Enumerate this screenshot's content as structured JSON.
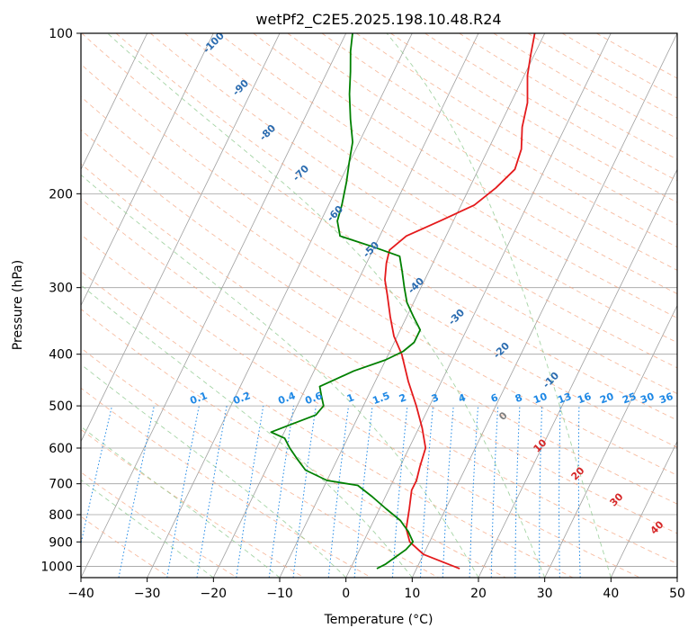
{
  "chart_data": {
    "type": "line",
    "subtype": "skew-t log-p",
    "title": "wetPf2_C2E5.2025.198.10.48.R24",
    "xlabel": "Temperature (°C)",
    "ylabel": "Pressure (hPa)",
    "xlim": [
      -40,
      50
    ],
    "ylim": [
      1050,
      100
    ],
    "yscale": "log",
    "grid": true,
    "x_ticks": [
      "−40",
      "−30",
      "−20",
      "−10",
      "0",
      "10",
      "20",
      "30",
      "40",
      "50"
    ],
    "x_tick_values": [
      -40,
      -30,
      -20,
      -10,
      0,
      10,
      20,
      30,
      40,
      50
    ],
    "y_ticks": [
      "100",
      "200",
      "300",
      "400",
      "500",
      "600",
      "700",
      "800",
      "900",
      "1000"
    ],
    "y_tick_values": [
      100,
      200,
      300,
      400,
      500,
      600,
      700,
      800,
      900,
      1000
    ],
    "series": [
      {
        "color": "#e41a1c",
        "points": [
          [
            16.5,
            1010
          ],
          [
            10,
            950
          ],
          [
            7,
            900
          ],
          [
            5.5,
            850
          ],
          [
            4.5,
            780
          ],
          [
            3.5,
            720
          ],
          [
            3.5,
            690
          ],
          [
            3,
            650
          ],
          [
            2.5,
            600
          ],
          [
            0.5,
            550
          ],
          [
            -2,
            500
          ],
          [
            -5,
            450
          ],
          [
            -8,
            400
          ],
          [
            -10.5,
            370
          ],
          [
            -12.5,
            340
          ],
          [
            -14.5,
            310
          ],
          [
            -16,
            290
          ],
          [
            -17,
            270
          ],
          [
            -17.5,
            255
          ],
          [
            -16,
            240
          ],
          [
            -12,
            225
          ],
          [
            -8,
            210
          ],
          [
            -6,
            195
          ],
          [
            -4.5,
            180
          ],
          [
            -5,
            165
          ],
          [
            -6.5,
            150
          ],
          [
            -7.5,
            135
          ],
          [
            -9.5,
            120
          ],
          [
            -10.5,
            110
          ],
          [
            -11.5,
            100
          ]
        ]
      },
      {
        "color": "#008000",
        "points": [
          [
            4,
            1010
          ],
          [
            5,
            990
          ],
          [
            6,
            960
          ],
          [
            7,
            930
          ],
          [
            7.5,
            900
          ],
          [
            6,
            860
          ],
          [
            5,
            840
          ],
          [
            4,
            820
          ],
          [
            1,
            780
          ],
          [
            -2,
            740
          ],
          [
            -5,
            705
          ],
          [
            -10,
            690
          ],
          [
            -14,
            660
          ],
          [
            -16,
            630
          ],
          [
            -18,
            600
          ],
          [
            -19.5,
            575
          ],
          [
            -22,
            560
          ],
          [
            -20,
            545
          ],
          [
            -16.5,
            520
          ],
          [
            -16,
            500
          ],
          [
            -17,
            480
          ],
          [
            -18,
            460
          ],
          [
            -14,
            430
          ],
          [
            -10,
            410
          ],
          [
            -8,
            395
          ],
          [
            -7,
            380
          ],
          [
            -7,
            360
          ],
          [
            -9,
            340
          ],
          [
            -11,
            320
          ],
          [
            -12.5,
            300
          ],
          [
            -14,
            280
          ],
          [
            -15.5,
            262
          ],
          [
            -20,
            252
          ],
          [
            -26,
            240
          ],
          [
            -27.5,
            225
          ],
          [
            -28,
            210
          ],
          [
            -29,
            190
          ],
          [
            -30,
            175
          ],
          [
            -31,
            160
          ],
          [
            -33,
            145
          ],
          [
            -35,
            130
          ],
          [
            -36.5,
            118
          ],
          [
            -38,
            108
          ],
          [
            -39,
            100
          ]
        ]
      }
    ],
    "dry_adiabat_labels": [
      "-100",
      "-90",
      "-80",
      "-70",
      "-60",
      "-50",
      "-40",
      "-30",
      "-20",
      "-10"
    ],
    "mixing_ratio_labels": [
      "0.1",
      "0.2",
      "0.4",
      "0.6",
      "1",
      "1.5",
      "2",
      "3",
      "4",
      "6",
      "8",
      "10",
      "13",
      "16",
      "20",
      "25",
      "30",
      "36"
    ],
    "moist_adiabat_labels": [
      "0",
      "10",
      "20",
      "30",
      "40"
    ],
    "colors": {
      "temperature": "#e41a1c",
      "dewpoint": "#008000",
      "isotherm": "#a0a0a0",
      "dry_adiabat": "#f4a582",
      "moist_adiabat": "#8fc98f",
      "mixing_ratio": "#1e88e5",
      "dry_adiabat_label": "#2b6cb0",
      "moist_adiabat_label": "#d62728",
      "mixing_label": "#1e88e5"
    }
  }
}
